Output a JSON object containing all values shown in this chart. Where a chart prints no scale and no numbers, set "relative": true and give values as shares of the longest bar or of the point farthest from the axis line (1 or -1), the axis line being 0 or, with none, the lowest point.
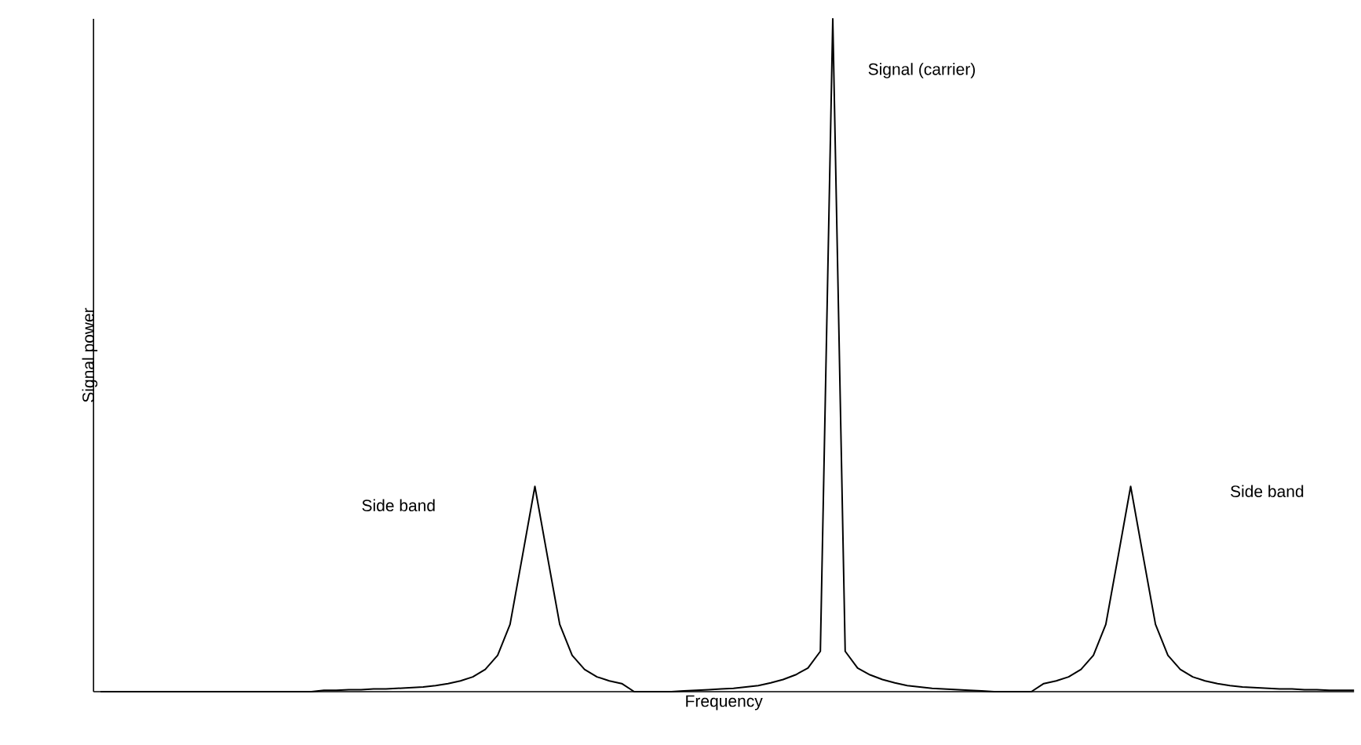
{
  "chart_data": {
    "type": "line",
    "relative": true,
    "color": "#000000",
    "xlabel": "Frequency",
    "ylabel": "Signal power",
    "annotations": [
      "Signal (carrier)",
      "Side band",
      "Side band"
    ],
    "categories": [
      null,
      null,
      null,
      null,
      null,
      null,
      null,
      null,
      null,
      null,
      null,
      null,
      null,
      null,
      null,
      null,
      null,
      null,
      null,
      null,
      null,
      null,
      null,
      null,
      null,
      null,
      null,
      null,
      null,
      null,
      null,
      null,
      null,
      null,
      null,
      null,
      null,
      null,
      null,
      null,
      null,
      null,
      null,
      null,
      null,
      null,
      null,
      null,
      null,
      null,
      null,
      null,
      null,
      null,
      null,
      null,
      null,
      null,
      null,
      null,
      null,
      null,
      null,
      null,
      null,
      null,
      null,
      null,
      null,
      null,
      null,
      null,
      null,
      null,
      null,
      null,
      null,
      null,
      null,
      null,
      null,
      null,
      null,
      null,
      null,
      null,
      null,
      null,
      null,
      null,
      null,
      null,
      null,
      null,
      null,
      null,
      null,
      null,
      null,
      null,
      null,
      null
    ],
    "values": [
      0,
      0,
      0,
      0,
      0,
      0,
      0,
      0,
      0,
      0,
      0,
      0,
      0,
      0,
      0,
      0,
      0,
      0,
      0.002,
      0.002,
      0.003,
      0.003,
      0.004,
      0.004,
      0.005,
      0.006,
      0.007,
      0.009,
      0.012,
      0.016,
      0.022,
      0.033,
      0.054,
      0.1,
      0.202,
      0.305,
      0.202,
      0.1,
      0.054,
      0.033,
      0.022,
      0.016,
      0.012,
      0,
      0,
      0,
      0,
      0.001,
      0.002,
      0.003,
      0.004,
      0.005,
      0.007,
      0.009,
      0.013,
      0.018,
      0.025,
      0.035,
      0.06,
      1,
      0.06,
      0.035,
      0.025,
      0.018,
      0.013,
      0.009,
      0.007,
      0.005,
      0.004,
      0.003,
      0.002,
      0.001,
      0,
      0,
      0,
      0,
      0.012,
      0.016,
      0.022,
      0.033,
      0.054,
      0.1,
      0.202,
      0.305,
      0.202,
      0.1,
      0.054,
      0.033,
      0.022,
      0.016,
      0.012,
      0.009,
      0.007,
      0.006,
      0.005,
      0.004,
      0.004,
      0.003,
      0.003,
      0.002,
      0.002,
      0.002
    ]
  }
}
